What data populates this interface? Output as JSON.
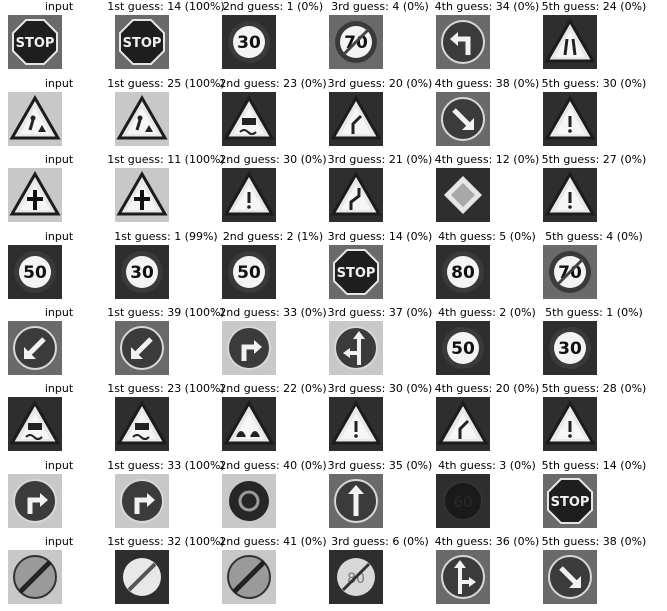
{
  "rows": [
    {
      "input_label": "input",
      "input_icon": "stop-sign-icon",
      "guesses": [
        {
          "label": "1st guess: 14 (100%)",
          "icon": "stop-sign-icon"
        },
        {
          "label": "2nd guess: 1 (0%)",
          "icon": "speed-limit-30-icon"
        },
        {
          "label": "3rd guess: 4 (0%)",
          "icon": "speed-limit-70-icon"
        },
        {
          "label": "4th guess: 34 (0%)",
          "icon": "turn-left-ahead-icon"
        },
        {
          "label": "5th guess: 24 (0%)",
          "icon": "road-narrows-icon"
        }
      ]
    },
    {
      "input_label": "input",
      "input_icon": "road-work-icon",
      "guesses": [
        {
          "label": "1st guess: 25 (100%)",
          "icon": "road-work-icon"
        },
        {
          "label": "2nd guess: 23 (0%)",
          "icon": "slippery-road-icon"
        },
        {
          "label": "3rd guess: 20 (0%)",
          "icon": "dangerous-curve-icon"
        },
        {
          "label": "4th guess: 38 (0%)",
          "icon": "keep-right-icon"
        },
        {
          "label": "5th guess: 30 (0%)",
          "icon": "warning-triangle-icon"
        }
      ]
    },
    {
      "input_label": "input",
      "input_icon": "right-of-way-icon",
      "guesses": [
        {
          "label": "1st guess: 11 (100%)",
          "icon": "right-of-way-icon"
        },
        {
          "label": "2nd guess: 30 (0%)",
          "icon": "warning-triangle-icon"
        },
        {
          "label": "3rd guess: 21 (0%)",
          "icon": "double-curve-icon"
        },
        {
          "label": "4th guess: 12 (0%)",
          "icon": "priority-road-icon"
        },
        {
          "label": "5th guess: 27 (0%)",
          "icon": "warning-triangle-icon"
        }
      ]
    },
    {
      "input_label": "input",
      "input_icon": "speed-limit-50-icon",
      "guesses": [
        {
          "label": "1st guess: 1 (99%)",
          "icon": "speed-limit-30-icon"
        },
        {
          "label": "2nd guess: 2 (1%)",
          "icon": "speed-limit-50-icon"
        },
        {
          "label": "3rd guess: 14 (0%)",
          "icon": "stop-sign-icon"
        },
        {
          "label": "4th guess: 5 (0%)",
          "icon": "speed-limit-80-icon"
        },
        {
          "label": "5th guess: 4 (0%)",
          "icon": "speed-limit-70-icon"
        }
      ]
    },
    {
      "input_label": "input",
      "input_icon": "keep-left-icon",
      "guesses": [
        {
          "label": "1st guess: 39 (100%)",
          "icon": "keep-left-icon"
        },
        {
          "label": "2nd guess: 33 (0%)",
          "icon": "turn-right-ahead-icon"
        },
        {
          "label": "3rd guess: 37 (0%)",
          "icon": "straight-or-left-icon"
        },
        {
          "label": "4th guess: 2 (0%)",
          "icon": "speed-limit-50-icon"
        },
        {
          "label": "5th guess: 1 (0%)",
          "icon": "speed-limit-30-icon"
        }
      ]
    },
    {
      "input_label": "input",
      "input_icon": "slippery-road-icon",
      "guesses": [
        {
          "label": "1st guess: 23 (100%)",
          "icon": "slippery-road-icon"
        },
        {
          "label": "2nd guess: 22 (0%)",
          "icon": "bumpy-road-icon"
        },
        {
          "label": "3rd guess: 30 (0%)",
          "icon": "warning-triangle-icon"
        },
        {
          "label": "4th guess: 20 (0%)",
          "icon": "dangerous-curve-icon"
        },
        {
          "label": "5th guess: 28 (0%)",
          "icon": "warning-triangle-icon"
        }
      ]
    },
    {
      "input_label": "input",
      "input_icon": "turn-right-ahead-icon",
      "guesses": [
        {
          "label": "1st guess: 33 (100%)",
          "icon": "turn-right-ahead-icon"
        },
        {
          "label": "2nd guess: 40 (0%)",
          "icon": "roundabout-icon"
        },
        {
          "label": "3rd guess: 35 (0%)",
          "icon": "ahead-only-icon"
        },
        {
          "label": "4th guess: 3 (0%)",
          "icon": "speed-limit-60-icon"
        },
        {
          "label": "5th guess: 14 (0%)",
          "icon": "stop-sign-icon"
        }
      ]
    },
    {
      "input_label": "input",
      "input_icon": "end-no-passing-icon",
      "guesses": [
        {
          "label": "1st guess: 32 (100%)",
          "icon": "end-of-limits-icon"
        },
        {
          "label": "2nd guess: 41 (0%)",
          "icon": "end-no-passing-icon"
        },
        {
          "label": "3rd guess: 6 (0%)",
          "icon": "end-speed-limit-icon"
        },
        {
          "label": "4th guess: 36 (0%)",
          "icon": "straight-or-right-icon"
        },
        {
          "label": "5th guess: 38 (0%)",
          "icon": "keep-right-icon"
        }
      ]
    }
  ]
}
